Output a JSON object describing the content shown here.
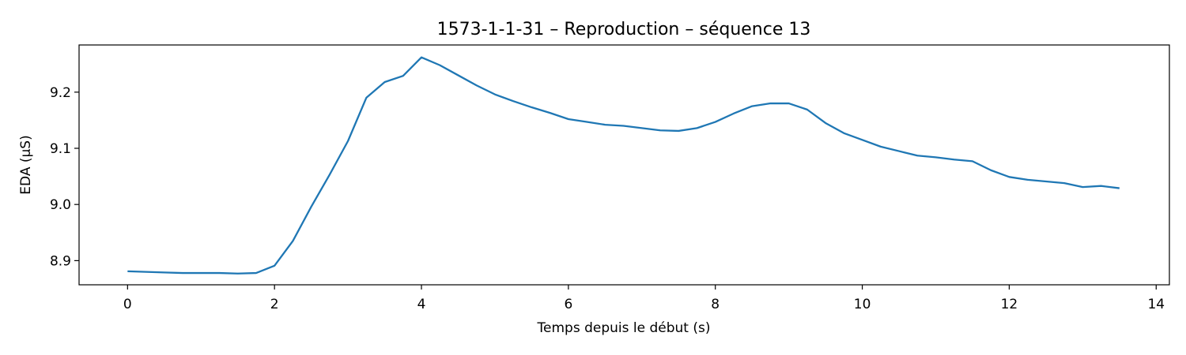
{
  "chart_data": {
    "type": "line",
    "title": "1573-1-1-31 – Reproduction – séquence 13",
    "xlabel": "Temps depuis le début (s)",
    "ylabel": "EDA (µS)",
    "xlim": [
      -0.66,
      14.18
    ],
    "ylim": [
      8.857,
      9.284
    ],
    "xticks": [
      0,
      2,
      4,
      6,
      8,
      10,
      12,
      14
    ],
    "yticks": [
      8.9,
      9.0,
      9.1,
      9.2
    ],
    "xtick_labels": [
      "0",
      "2",
      "4",
      "6",
      "8",
      "10",
      "12",
      "14"
    ],
    "ytick_labels": [
      "8.9",
      "9.0",
      "9.1",
      "9.2"
    ],
    "grid": false,
    "line_color": "#1f77b4",
    "series": [
      {
        "x": [
          0,
          0.25,
          0.5,
          0.75,
          1.0,
          1.25,
          1.5,
          1.75,
          2.0,
          2.25,
          2.5,
          2.75,
          3.0,
          3.25,
          3.5,
          3.75,
          4.0,
          4.25,
          4.5,
          4.75,
          5.0,
          5.25,
          5.5,
          5.75,
          6.0,
          6.25,
          6.5,
          6.75,
          7.0,
          7.25,
          7.5,
          7.75,
          8.0,
          8.25,
          8.5,
          8.75,
          9.0,
          9.25,
          9.5,
          9.75,
          10.0,
          10.25,
          10.5,
          10.75,
          11.0,
          11.25,
          11.5,
          11.75,
          12.0,
          12.25,
          12.5,
          12.75,
          13.0,
          13.25,
          13.5
        ],
        "values": [
          8.881,
          8.88,
          8.879,
          8.878,
          8.878,
          8.878,
          8.877,
          8.878,
          8.891,
          8.935,
          8.996,
          9.053,
          9.113,
          9.19,
          9.218,
          9.229,
          9.262,
          9.248,
          9.23,
          9.212,
          9.196,
          9.184,
          9.173,
          9.163,
          9.152,
          9.147,
          9.142,
          9.14,
          9.136,
          9.132,
          9.131,
          9.136,
          9.147,
          9.162,
          9.175,
          9.18,
          9.18,
          9.169,
          9.145,
          9.127,
          9.115,
          9.103,
          9.095,
          9.087,
          9.084,
          9.08,
          9.077,
          9.061,
          9.049,
          9.044,
          9.041,
          9.038,
          9.031,
          9.033,
          9.029
        ]
      }
    ]
  }
}
